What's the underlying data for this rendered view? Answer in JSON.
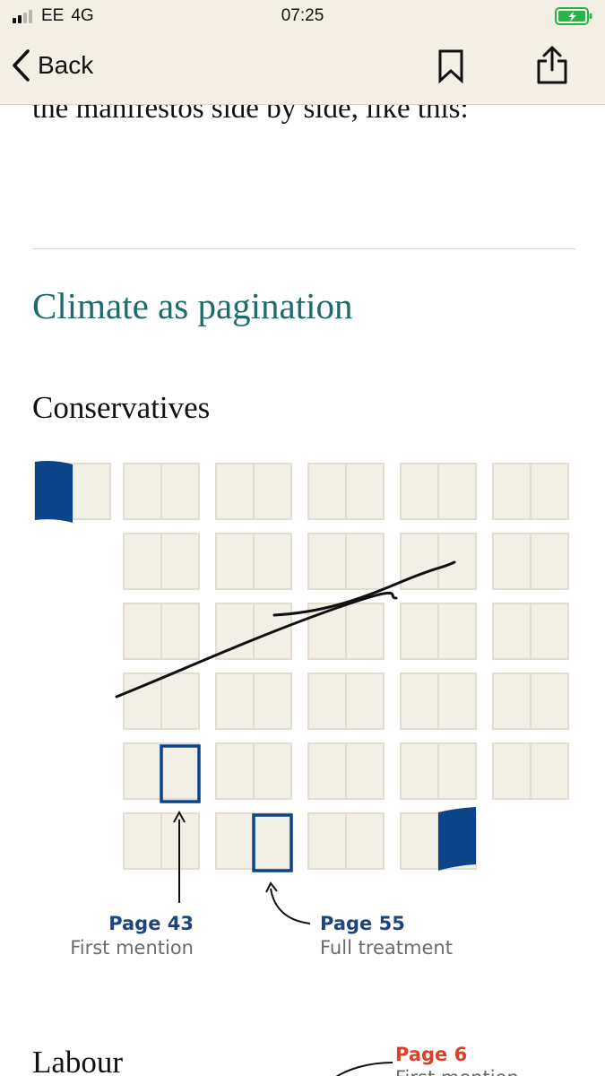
{
  "status_bar": {
    "carrier": "EE",
    "network": "4G",
    "time": "07:25",
    "signal_bars": 4,
    "signal_bars_active": 2,
    "battery_state": "charging",
    "battery_color": "#2bb24c"
  },
  "nav": {
    "back_label": "Back",
    "back_icon": "chevron-left-icon",
    "bookmark_icon": "bookmark-icon",
    "share_icon": "share-icon"
  },
  "article": {
    "intro_text": "the manifestos side by side, like this:",
    "section_title": "Climate as pagination",
    "heading_color": "#1f6a6a"
  },
  "figure": {
    "colors": {
      "page_fill": "#f2efe6",
      "page_border": "#e2ddcf",
      "highlight": "#0b4488",
      "label_red": "#d9412b"
    },
    "conservatives": {
      "party": "Conservatives",
      "callouts": [
        {
          "page": "Page 43",
          "description": "First mention"
        },
        {
          "page": "Page 55",
          "description": "Full treatment"
        }
      ]
    },
    "labour": {
      "party": "Labour",
      "callouts": [
        {
          "page": "Page 6",
          "description": "First mention"
        }
      ]
    }
  }
}
